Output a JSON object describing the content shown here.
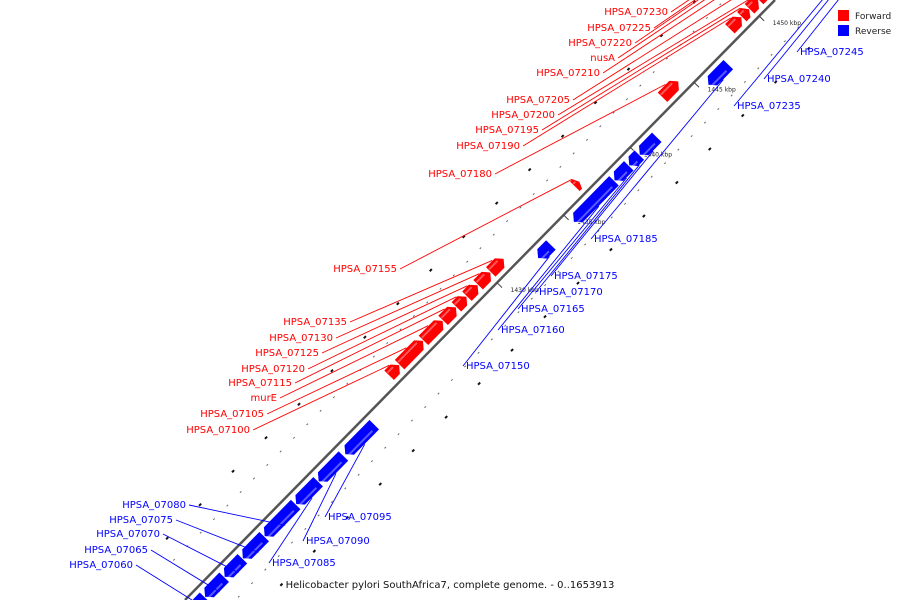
{
  "colors": {
    "forward": "#ff0000",
    "reverse": "#0000ff",
    "backbone": "#555555"
  },
  "legend": [
    {
      "key": "forward",
      "label": "Forward"
    },
    {
      "key": "reverse",
      "label": "Reverse"
    }
  ],
  "caption": "Helicobacter pylori SouthAfrica7, complete genome. - 0..1653913",
  "ticks": [
    {
      "kbp": 1430,
      "label": "1430 kbp"
    },
    {
      "kbp": 1435,
      "label": "1435 kbp"
    },
    {
      "kbp": 1440,
      "label": "1440 kbp"
    },
    {
      "kbp": 1445,
      "label": "1445 kbp"
    },
    {
      "kbp": 1450,
      "label": "1450 kbp"
    },
    {
      "kbp": 1455,
      "label": "1455 kbp"
    },
    {
      "kbp": 1460,
      "label": "1460 kbp"
    },
    {
      "kbp": 1465,
      "label": "1465 kbp"
    }
  ],
  "genes": [
    {
      "name": "HPSA_07060",
      "strand": "reverse"
    },
    {
      "name": "HPSA_07065",
      "strand": "reverse"
    },
    {
      "name": "HPSA_07070",
      "strand": "reverse"
    },
    {
      "name": "HPSA_07075",
      "strand": "reverse"
    },
    {
      "name": "HPSA_07080",
      "strand": "reverse"
    },
    {
      "name": "HPSA_07085",
      "strand": "reverse"
    },
    {
      "name": "HPSA_07090",
      "strand": "reverse"
    },
    {
      "name": "HPSA_07095",
      "strand": "reverse"
    },
    {
      "name": "HPSA_07100",
      "strand": "forward"
    },
    {
      "name": "HPSA_07105",
      "strand": "forward"
    },
    {
      "name": "murE",
      "strand": "forward"
    },
    {
      "name": "HPSA_07115",
      "strand": "forward"
    },
    {
      "name": "HPSA_07120",
      "strand": "forward"
    },
    {
      "name": "HPSA_07125",
      "strand": "forward"
    },
    {
      "name": "HPSA_07130",
      "strand": "forward"
    },
    {
      "name": "HPSA_07135",
      "strand": "forward"
    },
    {
      "name": "HPSA_07150",
      "strand": "reverse"
    },
    {
      "name": "HPSA_07155",
      "strand": "forward"
    },
    {
      "name": "HPSA_07160",
      "strand": "reverse"
    },
    {
      "name": "HPSA_07165",
      "strand": "reverse"
    },
    {
      "name": "HPSA_07170",
      "strand": "reverse"
    },
    {
      "name": "HPSA_07175",
      "strand": "reverse"
    },
    {
      "name": "HPSA_07180",
      "strand": "forward"
    },
    {
      "name": "HPSA_07185",
      "strand": "reverse"
    },
    {
      "name": "HPSA_07190",
      "strand": "forward"
    },
    {
      "name": "HPSA_07195",
      "strand": "forward"
    },
    {
      "name": "HPSA_07200",
      "strand": "forward"
    },
    {
      "name": "HPSA_07205",
      "strand": "forward"
    },
    {
      "name": "HPSA_07210",
      "strand": "forward"
    },
    {
      "name": "nusA",
      "strand": "forward"
    },
    {
      "name": "HPSA_07220",
      "strand": "forward"
    },
    {
      "name": "HPSA_07225",
      "strand": "forward"
    },
    {
      "name": "HPSA_07230",
      "strand": "forward"
    },
    {
      "name": "HPSA_07235",
      "strand": "reverse"
    },
    {
      "name": "HPSA_07240",
      "strand": "reverse"
    },
    {
      "name": "HPSA_07245",
      "strand": "reverse"
    }
  ]
}
